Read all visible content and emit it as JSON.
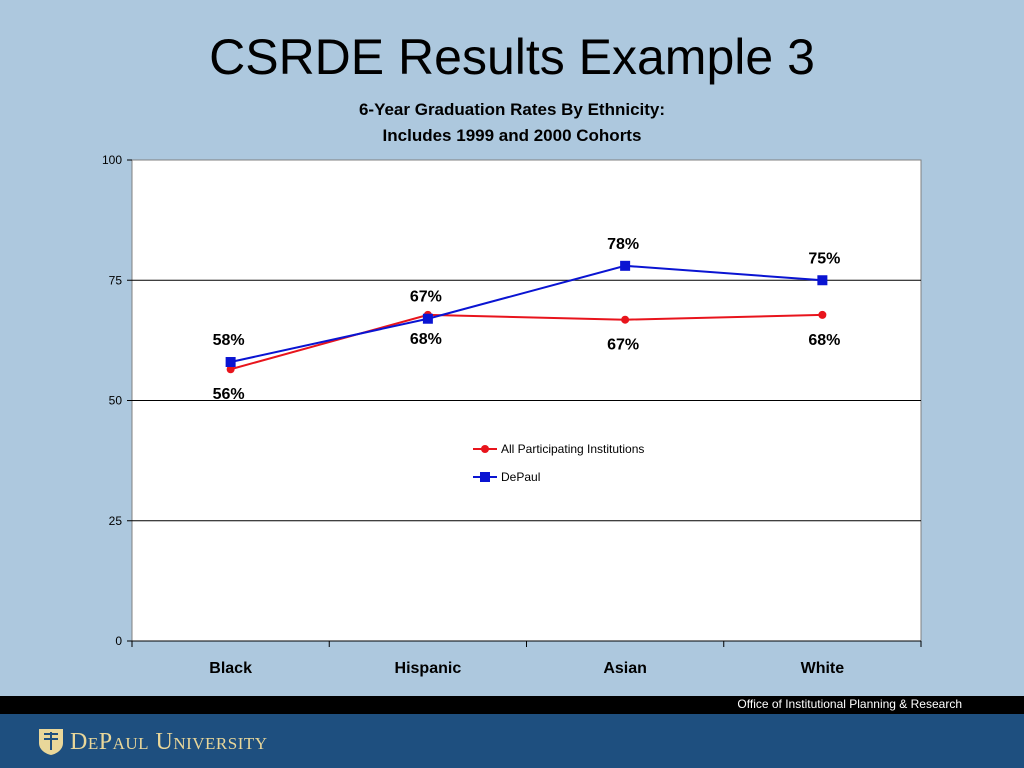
{
  "slide": {
    "title": "CSRDE Results Example 3"
  },
  "chart_data": {
    "type": "line",
    "title_line1": "6-Year Graduation Rates By Ethnicity:",
    "title_line2": "Includes 1999 and 2000 Cohorts",
    "categories": [
      "Black",
      "Hispanic",
      "Asian",
      "White"
    ],
    "ylim": [
      0,
      100
    ],
    "yticks": [
      0,
      25,
      50,
      75,
      100
    ],
    "grid": true,
    "legend_position": "center",
    "series": [
      {
        "name": "All Participating Institutions",
        "values": [
          56.5,
          67.8,
          66.8,
          67.8
        ],
        "labels": [
          "56%",
          "68%",
          "67%",
          "68%"
        ],
        "color": "#e8141c",
        "marker": "circle",
        "label_position": "below"
      },
      {
        "name": "DePaul",
        "values": [
          58,
          67,
          78,
          75
        ],
        "labels": [
          "58%",
          "67%",
          "78%",
          "75%"
        ],
        "color": "#0a14d2",
        "marker": "square",
        "label_position": "above"
      }
    ],
    "plot_background": "#ffffff"
  },
  "footer": {
    "office": "Office of Institutional Planning & Research",
    "logo_text": "DePaul University"
  }
}
